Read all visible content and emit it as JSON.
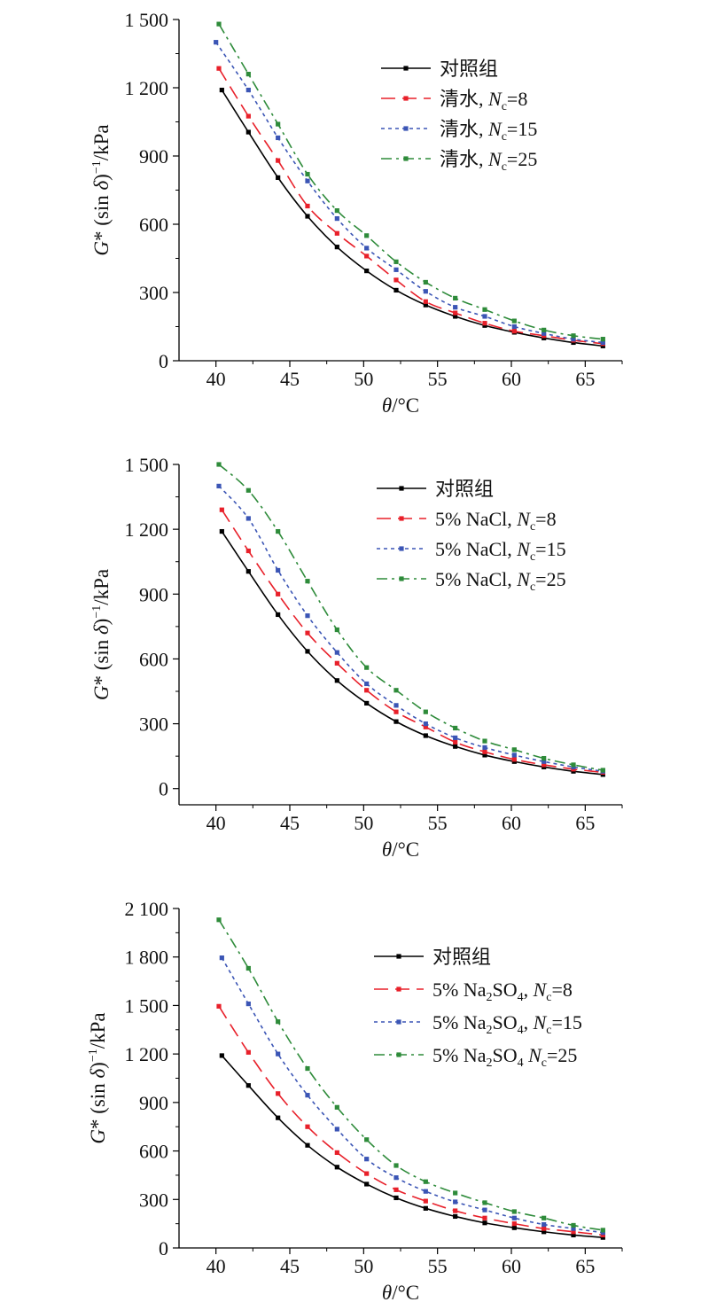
{
  "chart_data": [
    {
      "type": "line",
      "xlabel": "θ/°C",
      "ylabel": "G* (sin δ)⁻¹/kPa",
      "xlim": [
        37.5,
        67.5
      ],
      "ylim": [
        0,
        1500
      ],
      "xticks": [
        40,
        45,
        50,
        55,
        60,
        65
      ],
      "xtick_labels": [
        "40",
        "45",
        "50",
        "55",
        "60",
        "65"
      ],
      "yticks": [
        0,
        300,
        600,
        900,
        1200,
        1500
      ],
      "ytick_labels": [
        "0",
        "300",
        "600",
        "900",
        "1 200",
        "1 500"
      ],
      "legend_position": "top-right",
      "series": [
        {
          "name": "对照组",
          "name_parts": [
            [
              "对照组",
              "n"
            ]
          ],
          "color": "#000000",
          "dash": "",
          "x": [
            40.4,
            42.2,
            44.2,
            46.2,
            48.2,
            50.2,
            52.2,
            54.2,
            56.2,
            58.2,
            60.2,
            62.2,
            64.2,
            66.2
          ],
          "y": [
            1190,
            1005,
            805,
            635,
            500,
            395,
            310,
            245,
            195,
            155,
            125,
            100,
            80,
            65
          ]
        },
        {
          "name": "清水, Nc=8",
          "name_parts": [
            [
              "清水, ",
              "n"
            ],
            [
              "N",
              "i"
            ],
            [
              "c",
              "sub"
            ],
            [
              "=8",
              "n"
            ]
          ],
          "color": "#e8202a",
          "dash": "16,8",
          "x": [
            40.2,
            42.2,
            44.2,
            46.2,
            48.2,
            50.2,
            52.2,
            54.2,
            56.2,
            58.2,
            60.2,
            62.2,
            64.2,
            66.2
          ],
          "y": [
            1285,
            1075,
            880,
            680,
            560,
            460,
            355,
            260,
            210,
            165,
            130,
            110,
            90,
            75
          ]
        },
        {
          "name": "清水, Nc=15",
          "name_parts": [
            [
              "清水, ",
              "n"
            ],
            [
              "N",
              "i"
            ],
            [
              "c",
              "sub"
            ],
            [
              "=15",
              "n"
            ]
          ],
          "color": "#3b55b5",
          "dash": "4,4",
          "x": [
            40.0,
            42.2,
            44.2,
            46.2,
            48.2,
            50.2,
            52.2,
            54.2,
            56.2,
            58.2,
            60.2,
            62.2,
            64.2,
            66.2
          ],
          "y": [
            1400,
            1190,
            980,
            790,
            625,
            495,
            400,
            305,
            235,
            195,
            150,
            120,
            95,
            80
          ]
        },
        {
          "name": "清水, Nc=25",
          "name_parts": [
            [
              "清水, ",
              "n"
            ],
            [
              "N",
              "i"
            ],
            [
              "c",
              "sub"
            ],
            [
              "=25",
              "n"
            ]
          ],
          "color": "#2e8b3a",
          "dash": "12,5,3,5",
          "x": [
            40.2,
            42.2,
            44.2,
            46.2,
            48.2,
            50.2,
            52.2,
            54.2,
            56.2,
            58.2,
            60.2,
            62.2,
            64.2,
            66.2
          ],
          "y": [
            1480,
            1260,
            1040,
            820,
            660,
            550,
            435,
            345,
            275,
            225,
            175,
            135,
            110,
            95
          ]
        }
      ]
    },
    {
      "type": "line",
      "xlabel": "θ/°C",
      "ylabel": "G* (sin δ)⁻¹/kPa",
      "xlim": [
        37.5,
        67.5
      ],
      "ylim": [
        -75,
        1500
      ],
      "xticks": [
        40,
        45,
        50,
        55,
        60,
        65
      ],
      "xtick_labels": [
        "40",
        "45",
        "50",
        "55",
        "60",
        "65"
      ],
      "yticks": [
        0,
        300,
        600,
        900,
        1200,
        1500
      ],
      "ytick_labels": [
        "0",
        "300",
        "600",
        "900",
        "1 200",
        "1 500"
      ],
      "legend_position": "top-right",
      "series": [
        {
          "name": "对照组",
          "name_parts": [
            [
              "对照组",
              "n"
            ]
          ],
          "color": "#000000",
          "dash": "",
          "x": [
            40.4,
            42.2,
            44.2,
            46.2,
            48.2,
            50.2,
            52.2,
            54.2,
            56.2,
            58.2,
            60.2,
            62.2,
            64.2,
            66.2
          ],
          "y": [
            1190,
            1005,
            805,
            635,
            500,
            395,
            310,
            245,
            195,
            155,
            125,
            100,
            80,
            65
          ]
        },
        {
          "name": "5% NaCl, Nc=8",
          "name_parts": [
            [
              "5% NaCl, ",
              "n"
            ],
            [
              "N",
              "i"
            ],
            [
              "c",
              "sub"
            ],
            [
              "=8",
              "n"
            ]
          ],
          "color": "#e8202a",
          "dash": "16,8",
          "x": [
            40.4,
            42.2,
            44.2,
            46.2,
            48.2,
            50.2,
            52.2,
            54.2,
            56.2,
            58.2,
            60.2,
            62.2,
            64.2,
            66.2
          ],
          "y": [
            1290,
            1100,
            900,
            720,
            580,
            455,
            355,
            285,
            215,
            170,
            135,
            110,
            90,
            75
          ]
        },
        {
          "name": "5% NaCl, Nc=15",
          "name_parts": [
            [
              "5% NaCl, ",
              "n"
            ],
            [
              "N",
              "i"
            ],
            [
              "c",
              "sub"
            ],
            [
              "=15",
              "n"
            ]
          ],
          "color": "#3b55b5",
          "dash": "4,4",
          "x": [
            40.2,
            42.2,
            44.2,
            46.2,
            48.2,
            50.2,
            52.2,
            54.2,
            56.2,
            58.2,
            60.2,
            62.2,
            64.2,
            66.2
          ],
          "y": [
            1400,
            1250,
            1010,
            800,
            630,
            485,
            385,
            300,
            235,
            190,
            155,
            125,
            100,
            80
          ]
        },
        {
          "name": "5% NaCl, Nc=25",
          "name_parts": [
            [
              "5% NaCl, ",
              "n"
            ],
            [
              "N",
              "i"
            ],
            [
              "c",
              "sub"
            ],
            [
              "=25",
              "n"
            ]
          ],
          "color": "#2e8b3a",
          "dash": "12,5,3,5",
          "x": [
            40.2,
            42.2,
            44.2,
            46.2,
            48.2,
            50.2,
            52.2,
            54.2,
            56.2,
            58.2,
            60.2,
            62.2,
            64.2,
            66.2
          ],
          "y": [
            1500,
            1380,
            1190,
            960,
            735,
            560,
            455,
            355,
            280,
            220,
            180,
            140,
            110,
            85
          ]
        }
      ]
    },
    {
      "type": "line",
      "xlabel": "θ/°C",
      "ylabel": "G* (sin δ)⁻¹/kPa",
      "xlim": [
        37.5,
        67.5
      ],
      "ylim": [
        0,
        2100
      ],
      "xticks": [
        40,
        45,
        50,
        55,
        60,
        65
      ],
      "xtick_labels": [
        "40",
        "45",
        "50",
        "55",
        "60",
        "65"
      ],
      "yticks": [
        0,
        300,
        600,
        900,
        1200,
        1500,
        1800,
        2100
      ],
      "ytick_labels": [
        "0",
        "300",
        "600",
        "900",
        "1 200",
        "1 500",
        "1 800",
        "2 100"
      ],
      "legend_position": "top-right",
      "series": [
        {
          "name": "对照组",
          "name_parts": [
            [
              "对照组",
              "n"
            ]
          ],
          "color": "#000000",
          "dash": "",
          "x": [
            40.4,
            42.2,
            44.2,
            46.2,
            48.2,
            50.2,
            52.2,
            54.2,
            56.2,
            58.2,
            60.2,
            62.2,
            64.2,
            66.2
          ],
          "y": [
            1190,
            1005,
            805,
            635,
            500,
            395,
            310,
            245,
            195,
            155,
            125,
            100,
            80,
            65
          ]
        },
        {
          "name": "5% Na2SO4, Nc=8",
          "name_parts": [
            [
              "5% Na",
              "n"
            ],
            [
              "2",
              "sub"
            ],
            [
              "SO",
              "n"
            ],
            [
              "4",
              "sub"
            ],
            [
              ", ",
              "n"
            ],
            [
              "N",
              "i"
            ],
            [
              "c",
              "sub"
            ],
            [
              "=8",
              "n"
            ]
          ],
          "color": "#e8202a",
          "dash": "16,8",
          "x": [
            40.2,
            42.2,
            44.2,
            46.2,
            48.2,
            50.2,
            52.2,
            54.2,
            56.2,
            58.2,
            60.2,
            62.2,
            64.2,
            66.2
          ],
          "y": [
            1495,
            1210,
            955,
            750,
            590,
            460,
            360,
            290,
            230,
            185,
            150,
            120,
            100,
            80
          ]
        },
        {
          "name": "5% Na2SO4, Nc=15",
          "name_parts": [
            [
              "5% Na",
              "n"
            ],
            [
              "2",
              "sub"
            ],
            [
              "SO",
              "n"
            ],
            [
              "4",
              "sub"
            ],
            [
              ", ",
              "n"
            ],
            [
              "N",
              "i"
            ],
            [
              "c",
              "sub"
            ],
            [
              "=15",
              "n"
            ]
          ],
          "color": "#3b55b5",
          "dash": "4,4",
          "x": [
            40.4,
            42.2,
            44.2,
            46.2,
            48.2,
            50.2,
            52.2,
            54.2,
            56.2,
            58.2,
            60.2,
            62.2,
            64.2,
            66.2
          ],
          "y": [
            1795,
            1510,
            1200,
            945,
            735,
            550,
            435,
            350,
            285,
            235,
            185,
            145,
            120,
            95
          ]
        },
        {
          "name": "5% Na2SO4 Nc=25",
          "name_parts": [
            [
              "5% Na",
              "n"
            ],
            [
              "2",
              "sub"
            ],
            [
              "SO",
              "n"
            ],
            [
              "4",
              "sub"
            ],
            [
              " ",
              "n"
            ],
            [
              "N",
              "i"
            ],
            [
              "c",
              "sub"
            ],
            [
              "=25",
              "n"
            ]
          ],
          "color": "#2e8b3a",
          "dash": "12,5,3,5",
          "x": [
            40.2,
            42.2,
            44.2,
            46.2,
            48.2,
            50.2,
            52.2,
            54.2,
            56.2,
            58.2,
            60.2,
            62.2,
            64.2,
            66.2
          ],
          "y": [
            2030,
            1730,
            1400,
            1110,
            870,
            670,
            510,
            410,
            340,
            280,
            225,
            185,
            140,
            110
          ]
        }
      ]
    }
  ]
}
